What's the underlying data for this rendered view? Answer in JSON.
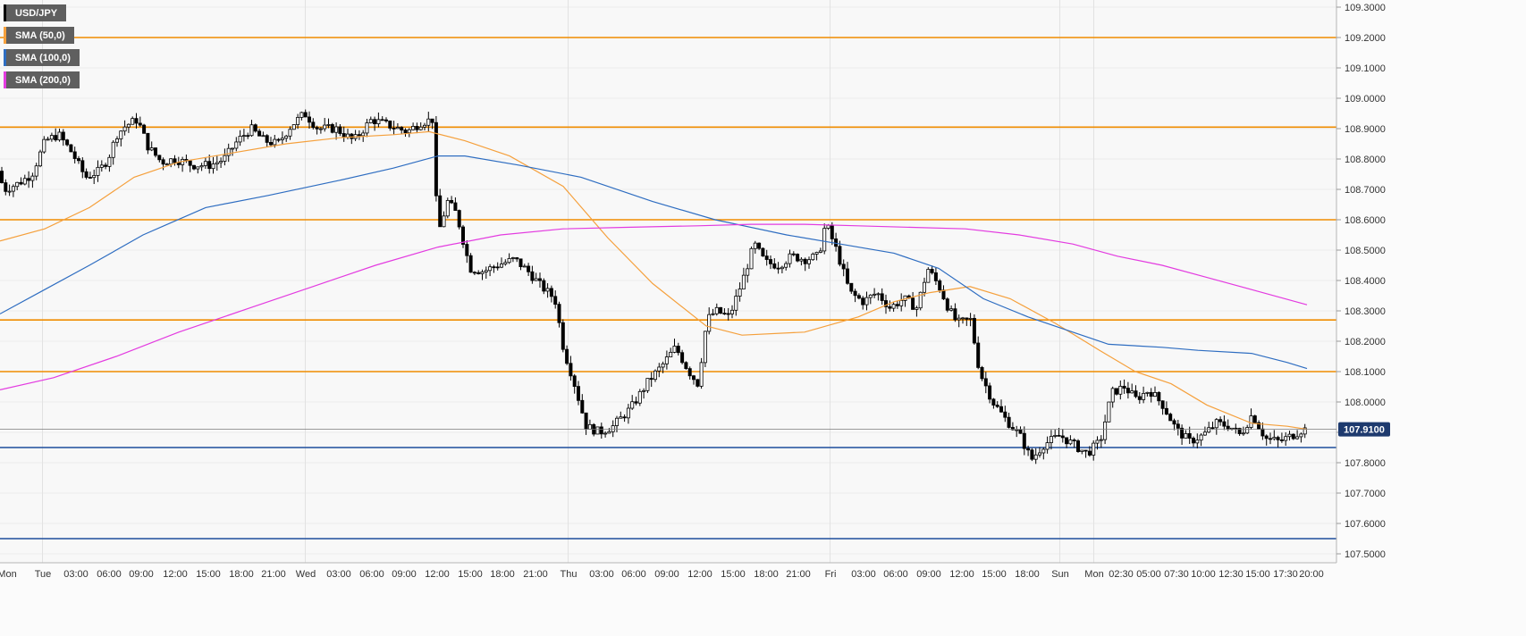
{
  "chart_data": {
    "type": "candlestick",
    "symbol": "USD/JPY",
    "legend": [
      {
        "label": "USD/JPY",
        "color": "#000000"
      },
      {
        "label": "SMA (50,0)",
        "color": "#f5a03c"
      },
      {
        "label": "SMA (100,0)",
        "color": "#2e6dc1"
      },
      {
        "label": "SMA (200,0)",
        "color": "#e33be0"
      }
    ],
    "ylim": [
      107.45,
      109.33
    ],
    "y_ticks": [
      "109.3000",
      "109.2000",
      "109.1000",
      "109.0000",
      "108.9000",
      "108.8000",
      "108.7000",
      "108.6000",
      "108.5000",
      "108.4000",
      "108.3000",
      "108.2000",
      "108.1000",
      "108.0000",
      "107.9000",
      "107.8000",
      "107.7000",
      "107.6000",
      "107.5000"
    ],
    "x_ticks": [
      "Mon",
      "Tue",
      "03:00",
      "06:00",
      "09:00",
      "12:00",
      "15:00",
      "18:00",
      "21:00",
      "Wed",
      "03:00",
      "06:00",
      "09:00",
      "12:00",
      "15:00",
      "18:00",
      "21:00",
      "Thu",
      "03:00",
      "06:00",
      "09:00",
      "12:00",
      "15:00",
      "18:00",
      "21:00",
      "Fri",
      "03:00",
      "06:00",
      "09:00",
      "12:00",
      "15:00",
      "18:00",
      "Sun",
      "Mon",
      "02:30",
      "05:00",
      "07:30",
      "10:00",
      "12:30",
      "15:00",
      "17:30",
      "20:00"
    ],
    "day_separators": [
      "Tue",
      "Wed",
      "Thu",
      "Fri",
      "Sun",
      "Mon"
    ],
    "horizontal_levels": {
      "resistance": [
        109.2,
        108.905,
        108.6,
        108.27,
        108.1
      ],
      "support": [
        107.85,
        107.55
      ]
    },
    "last_price": "107.9100",
    "colors": {
      "resistance": "#f08c00",
      "support": "#1e4e9c",
      "up": "#ffffff",
      "down": "#000000",
      "price_box": "#1e3a6e"
    },
    "anchors": [
      [
        0,
        108.76
      ],
      [
        10,
        108.7
      ],
      [
        25,
        108.72
      ],
      [
        40,
        108.75
      ],
      [
        55,
        108.86
      ],
      [
        70,
        108.88
      ],
      [
        85,
        108.82
      ],
      [
        100,
        108.74
      ],
      [
        115,
        108.76
      ],
      [
        125,
        108.8
      ],
      [
        135,
        108.88
      ],
      [
        145,
        108.91
      ],
      [
        158,
        108.93
      ],
      [
        170,
        108.84
      ],
      [
        185,
        108.79
      ],
      [
        200,
        108.8
      ],
      [
        220,
        108.78
      ],
      [
        240,
        108.78
      ],
      [
        255,
        108.8
      ],
      [
        270,
        108.86
      ],
      [
        285,
        108.9
      ],
      [
        300,
        108.86
      ],
      [
        315,
        108.85
      ],
      [
        330,
        108.91
      ],
      [
        345,
        108.95
      ],
      [
        360,
        108.9
      ],
      [
        380,
        108.9
      ],
      [
        400,
        108.86
      ],
      [
        420,
        108.93
      ],
      [
        440,
        108.91
      ],
      [
        460,
        108.89
      ],
      [
        475,
        108.92
      ],
      [
        488,
        108.93
      ],
      [
        494,
        108.55
      ],
      [
        505,
        108.66
      ],
      [
        515,
        108.62
      ],
      [
        530,
        108.44
      ],
      [
        545,
        108.43
      ],
      [
        560,
        108.45
      ],
      [
        580,
        108.47
      ],
      [
        595,
        108.43
      ],
      [
        610,
        108.38
      ],
      [
        625,
        108.34
      ],
      [
        635,
        108.17
      ],
      [
        645,
        108.08
      ],
      [
        660,
        107.92
      ],
      [
        675,
        107.9
      ],
      [
        690,
        107.92
      ],
      [
        710,
        107.98
      ],
      [
        730,
        108.07
      ],
      [
        745,
        108.12
      ],
      [
        760,
        108.18
      ],
      [
        775,
        108.1
      ],
      [
        785,
        108.06
      ],
      [
        795,
        108.27
      ],
      [
        805,
        108.3
      ],
      [
        820,
        108.28
      ],
      [
        835,
        108.4
      ],
      [
        848,
        108.52
      ],
      [
        860,
        108.46
      ],
      [
        875,
        108.45
      ],
      [
        890,
        108.48
      ],
      [
        905,
        108.47
      ],
      [
        920,
        108.48
      ],
      [
        928,
        108.59
      ],
      [
        940,
        108.5
      ],
      [
        955,
        108.36
      ],
      [
        970,
        108.33
      ],
      [
        985,
        108.36
      ],
      [
        1000,
        108.31
      ],
      [
        1015,
        108.34
      ],
      [
        1030,
        108.31
      ],
      [
        1042,
        108.44
      ],
      [
        1055,
        108.38
      ],
      [
        1065,
        108.31
      ],
      [
        1075,
        108.26
      ],
      [
        1090,
        108.27
      ],
      [
        1100,
        108.1
      ],
      [
        1115,
        108.0
      ],
      [
        1130,
        107.94
      ],
      [
        1145,
        107.89
      ],
      [
        1158,
        107.81
      ],
      [
        1172,
        107.86
      ],
      [
        1190,
        107.89
      ],
      [
        1205,
        107.86
      ],
      [
        1220,
        107.83
      ],
      [
        1235,
        107.87
      ],
      [
        1248,
        108.03
      ],
      [
        1262,
        108.05
      ],
      [
        1275,
        108.01
      ],
      [
        1290,
        108.04
      ],
      [
        1305,
        107.99
      ],
      [
        1320,
        107.91
      ],
      [
        1335,
        107.87
      ],
      [
        1350,
        107.89
      ],
      [
        1365,
        107.93
      ],
      [
        1380,
        107.92
      ],
      [
        1392,
        107.89
      ],
      [
        1405,
        107.96
      ],
      [
        1420,
        107.88
      ],
      [
        1435,
        107.87
      ],
      [
        1450,
        107.89
      ],
      [
        1462,
        107.91
      ]
    ],
    "sma50": [
      [
        0,
        108.53
      ],
      [
        50,
        108.57
      ],
      [
        100,
        108.64
      ],
      [
        150,
        108.74
      ],
      [
        200,
        108.79
      ],
      [
        260,
        108.82
      ],
      [
        320,
        108.85
      ],
      [
        380,
        108.87
      ],
      [
        440,
        108.88
      ],
      [
        480,
        108.89
      ],
      [
        520,
        108.86
      ],
      [
        570,
        108.81
      ],
      [
        630,
        108.71
      ],
      [
        680,
        108.54
      ],
      [
        730,
        108.39
      ],
      [
        790,
        108.25
      ],
      [
        830,
        108.22
      ],
      [
        900,
        108.23
      ],
      [
        960,
        108.28
      ],
      [
        1000,
        108.33
      ],
      [
        1040,
        108.36
      ],
      [
        1085,
        108.38
      ],
      [
        1130,
        108.34
      ],
      [
        1180,
        108.26
      ],
      [
        1230,
        108.17
      ],
      [
        1270,
        108.1
      ],
      [
        1310,
        108.06
      ],
      [
        1350,
        107.99
      ],
      [
        1400,
        107.93
      ],
      [
        1440,
        107.92
      ],
      [
        1462,
        107.91
      ]
    ],
    "sma100": [
      [
        0,
        108.29
      ],
      [
        50,
        108.37
      ],
      [
        100,
        108.45
      ],
      [
        160,
        108.55
      ],
      [
        230,
        108.64
      ],
      [
        300,
        108.68
      ],
      [
        380,
        108.73
      ],
      [
        440,
        108.77
      ],
      [
        490,
        108.81
      ],
      [
        520,
        108.81
      ],
      [
        580,
        108.78
      ],
      [
        650,
        108.74
      ],
      [
        730,
        108.66
      ],
      [
        800,
        108.6
      ],
      [
        880,
        108.55
      ],
      [
        940,
        108.52
      ],
      [
        1000,
        108.49
      ],
      [
        1050,
        108.44
      ],
      [
        1100,
        108.34
      ],
      [
        1150,
        108.28
      ],
      [
        1200,
        108.23
      ],
      [
        1240,
        108.19
      ],
      [
        1300,
        108.18
      ],
      [
        1340,
        108.17
      ],
      [
        1400,
        108.16
      ],
      [
        1440,
        108.13
      ],
      [
        1462,
        108.11
      ]
    ],
    "sma200": [
      [
        0,
        108.04
      ],
      [
        60,
        108.08
      ],
      [
        130,
        108.15
      ],
      [
        200,
        108.23
      ],
      [
        280,
        108.31
      ],
      [
        350,
        108.38
      ],
      [
        420,
        108.45
      ],
      [
        490,
        108.51
      ],
      [
        560,
        108.55
      ],
      [
        630,
        108.57
      ],
      [
        700,
        108.575
      ],
      [
        780,
        108.58
      ],
      [
        840,
        108.585
      ],
      [
        900,
        108.585
      ],
      [
        960,
        108.58
      ],
      [
        1020,
        108.575
      ],
      [
        1080,
        108.57
      ],
      [
        1140,
        108.55
      ],
      [
        1200,
        108.52
      ],
      [
        1250,
        108.48
      ],
      [
        1300,
        108.45
      ],
      [
        1350,
        108.41
      ],
      [
        1400,
        108.37
      ],
      [
        1462,
        108.32
      ]
    ]
  }
}
